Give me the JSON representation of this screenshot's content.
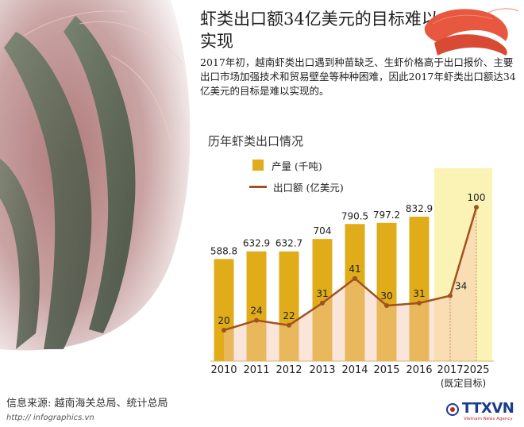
{
  "header": {
    "title": "虾类出口额34亿美元的目标难以实现",
    "intro": "2017年初，越南虾类出口遇到种苗缺乏、生虾价格高于出口报价、主要出口市场加强技术和贸易壁垒等种种困难，因此2017年虾类出口额达34亿美元的目标是难以实现的。"
  },
  "chart_data": {
    "type": "bar",
    "title": "历年虾类出口情况",
    "categories": [
      "2010",
      "2011",
      "2012",
      "2013",
      "2014",
      "2015",
      "2016",
      "2017",
      "2025"
    ],
    "category_note": "(既定目标)",
    "series": [
      {
        "name": "产量 (千吨)",
        "kind": "bar",
        "values": [
          588.8,
          632.9,
          632.7,
          704,
          790.5,
          797.2,
          832.9,
          null,
          null
        ],
        "color": "#e0ac1a"
      },
      {
        "name": "出口额 (亿美元)",
        "kind": "line",
        "values": [
          20,
          24,
          22,
          31,
          41,
          30,
          31,
          34,
          100
        ],
        "color": "#a0521f"
      }
    ],
    "highlight_categories": [
      "2017",
      "2025"
    ],
    "highlight_color": "#fbf3b6"
  },
  "footer": {
    "source": "信息来源: 越南海关总局、统计总局",
    "watermark": "http:// infographics.vn",
    "logo_text": "TTXVN",
    "logo_sub": "Vietnam News Agency"
  }
}
